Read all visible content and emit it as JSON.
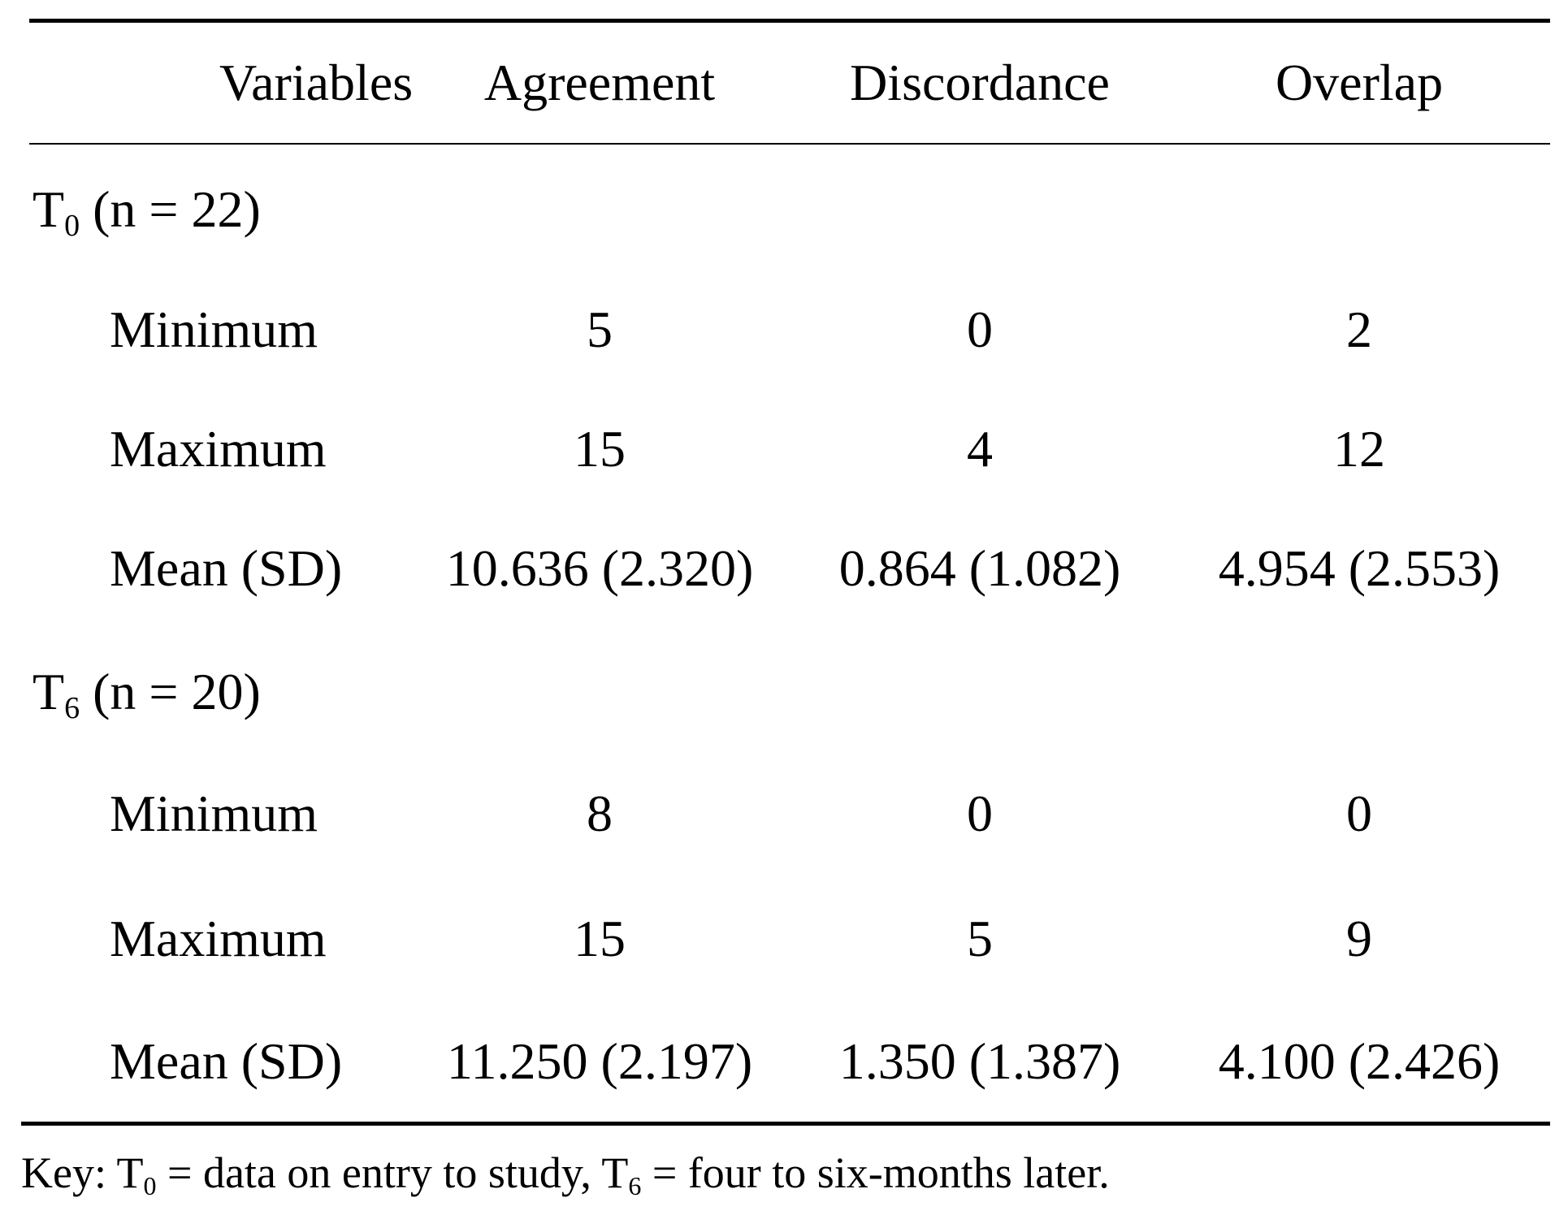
{
  "table": {
    "headers": [
      "Variables",
      "Agreement",
      "Discordance",
      "Overlap"
    ],
    "groups": [
      {
        "label_main": "T",
        "label_sub": "0",
        "label_rest": " (n = 22)",
        "rows": [
          {
            "label": "Minimum",
            "values": [
              "5",
              "0",
              "2"
            ]
          },
          {
            "label": "Maximum",
            "values": [
              "15",
              "4",
              "12"
            ]
          },
          {
            "label": "Mean (SD)",
            "values": [
              "10.636 (2.320)",
              "0.864 (1.082)",
              "4.954 (2.553)"
            ]
          }
        ]
      },
      {
        "label_main": "T",
        "label_sub": "6",
        "label_rest": " (n = 20)",
        "rows": [
          {
            "label": "Minimum",
            "values": [
              "8",
              "0",
              "0"
            ]
          },
          {
            "label": "Maximum",
            "values": [
              "15",
              "5",
              "9"
            ]
          },
          {
            "label": "Mean (SD)",
            "values": [
              "11.250 (2.197)",
              "1.350 (1.387)",
              "4.100 (2.426)"
            ]
          }
        ]
      }
    ]
  },
  "footnote": {
    "part1": "Key: T",
    "sub1": "0",
    "part2": " = data on entry to study, T",
    "sub2": "6",
    "part3": " = four to six-months later."
  }
}
